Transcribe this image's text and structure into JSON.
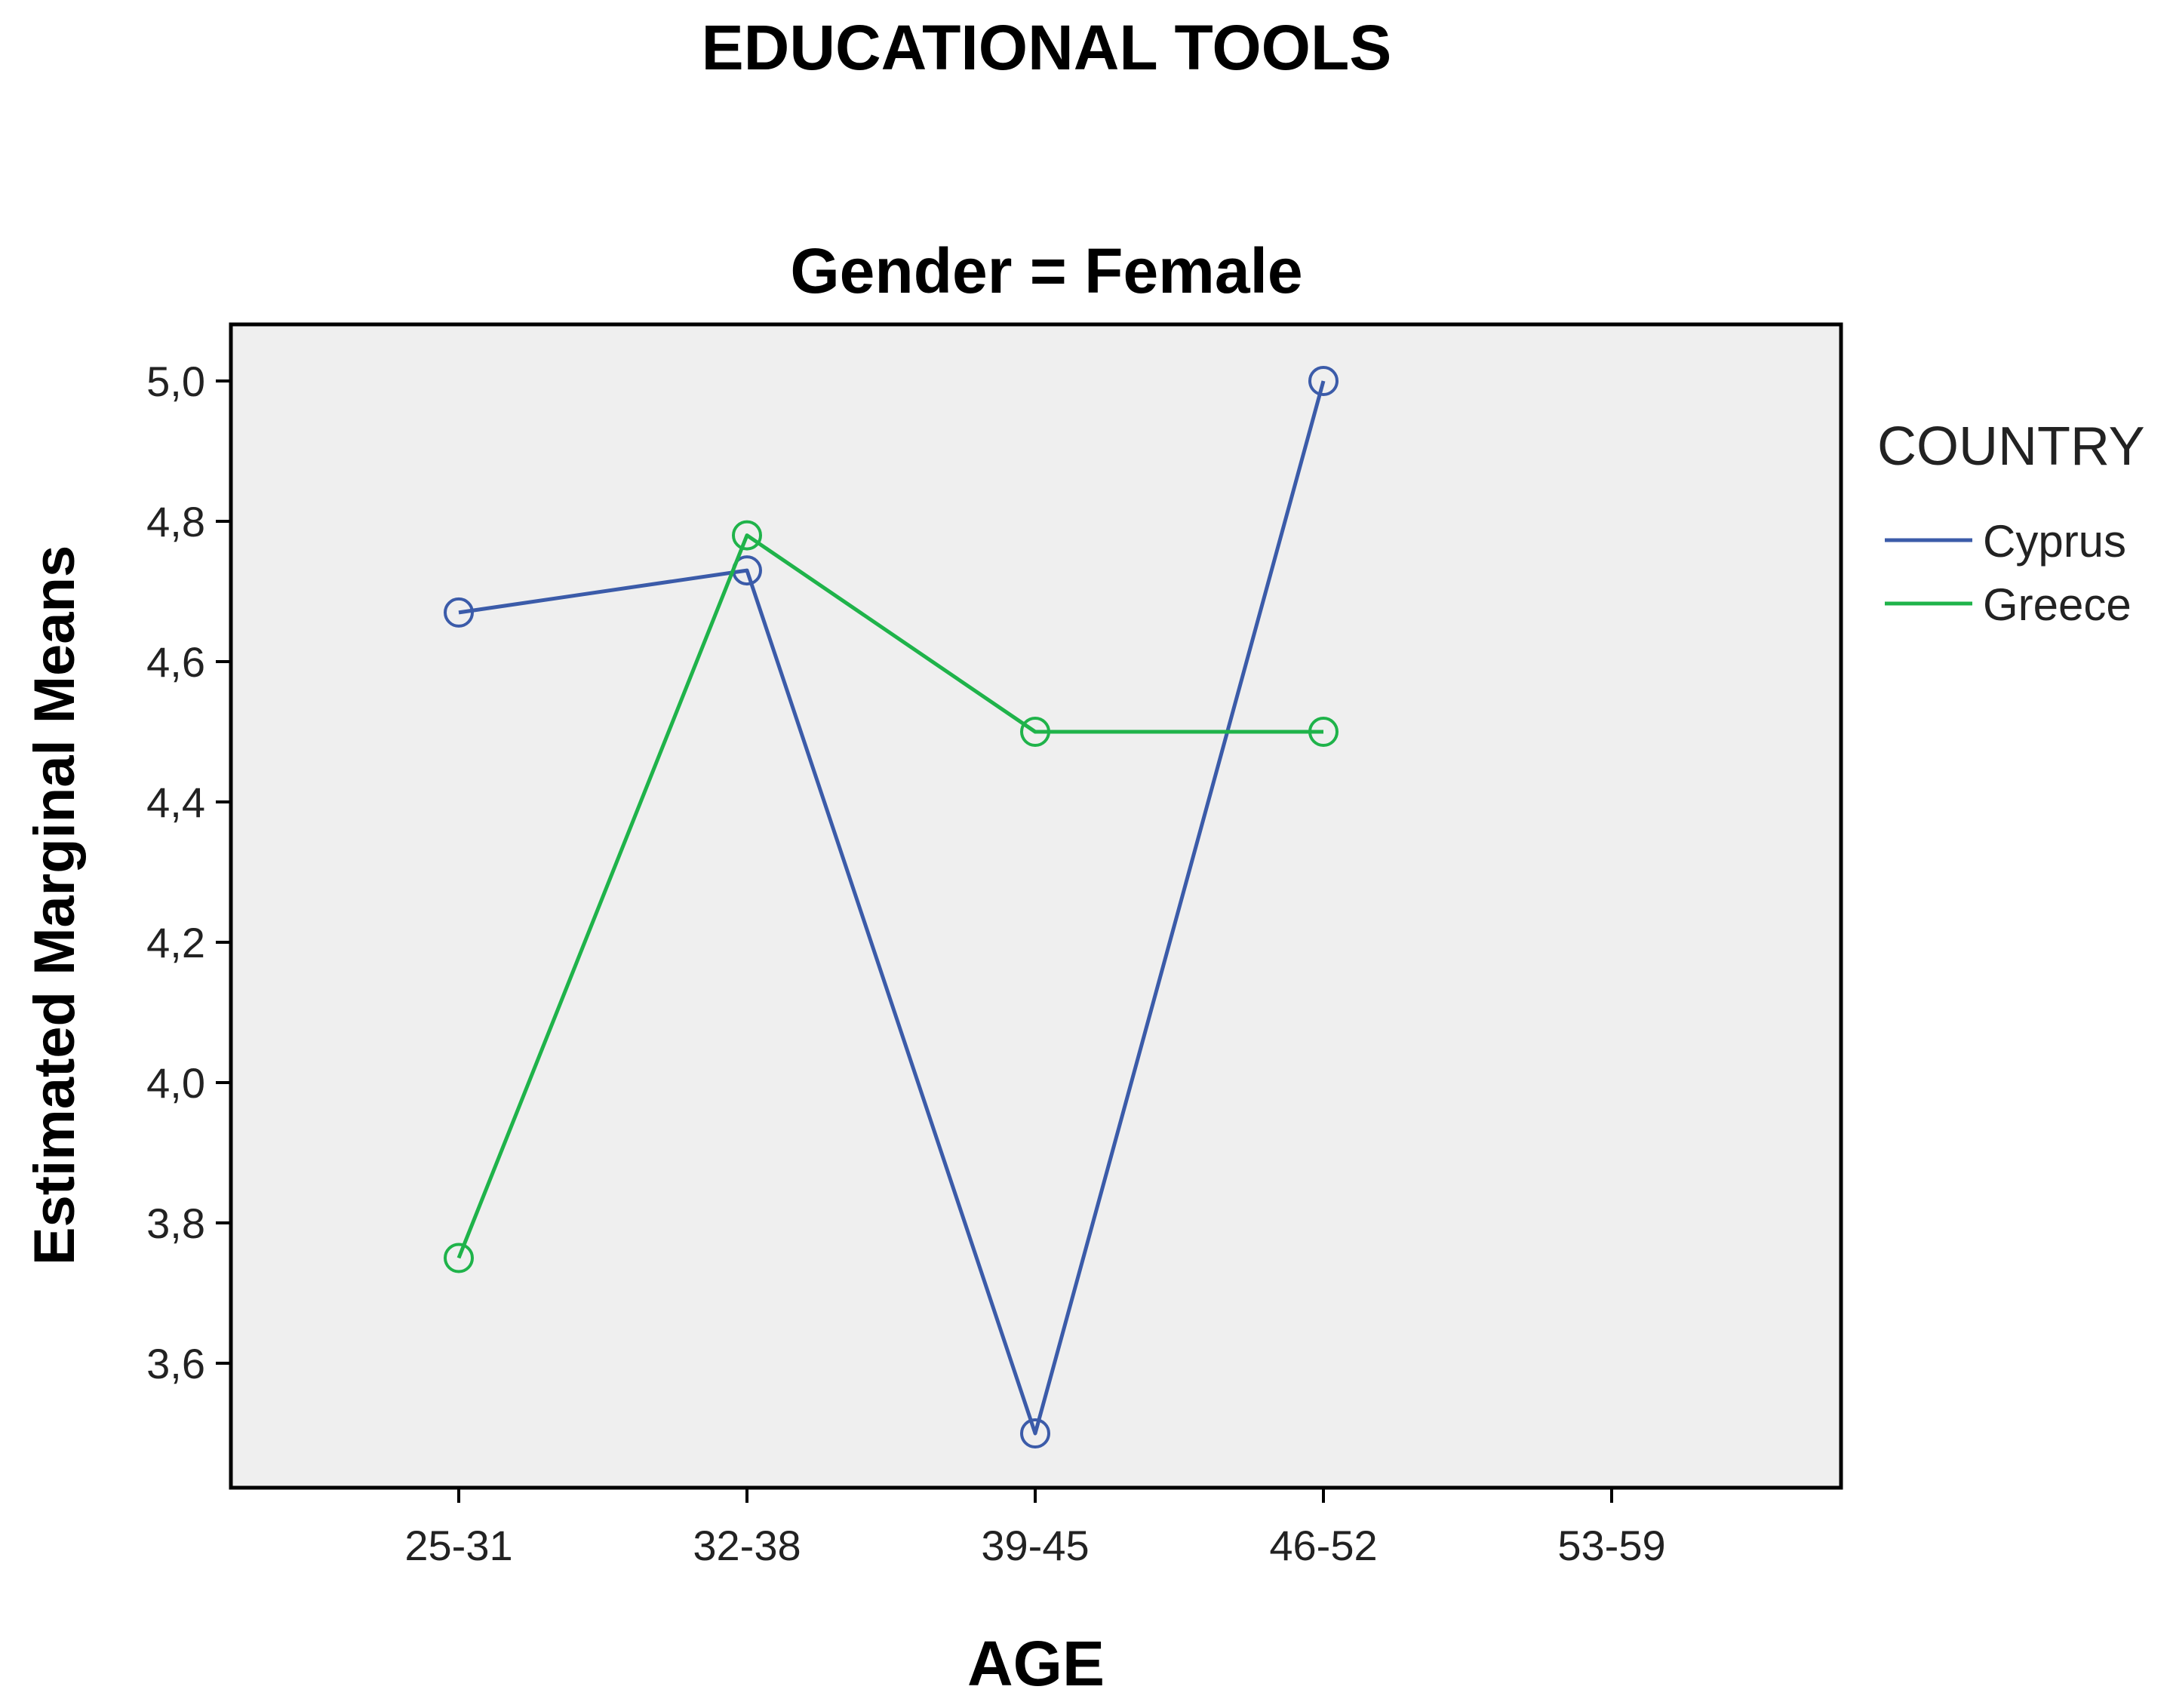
{
  "chart_data": {
    "type": "line",
    "title": "EDUCATIONAL TOOLS",
    "subtitle": "Gender = Female",
    "xlabel": "AGE",
    "ylabel": "Estimated Marginal Means",
    "categories": [
      "25-31",
      "32-38",
      "39-45",
      "46-52",
      "53-59"
    ],
    "y_ticks": [
      "3,6",
      "3,8",
      "4,0",
      "4,2",
      "4,4",
      "4,6",
      "4,8",
      "5,0"
    ],
    "y_tick_values": [
      3.6,
      3.8,
      4.0,
      4.2,
      4.4,
      4.6,
      4.8,
      5.0
    ],
    "ylim": [
      3.42,
      5.08
    ],
    "grid": false,
    "legend": {
      "title": "COUNTRY",
      "position": "right"
    },
    "series": [
      {
        "name": "Cyprus",
        "color": "#3b5ba9",
        "values": [
          4.67,
          4.73,
          3.5,
          5.0,
          null
        ]
      },
      {
        "name": "Greece",
        "color": "#1fb34a",
        "values": [
          3.75,
          4.78,
          4.5,
          4.5,
          null
        ]
      }
    ],
    "marker": "open-circle",
    "plot_background": "#efefef"
  }
}
